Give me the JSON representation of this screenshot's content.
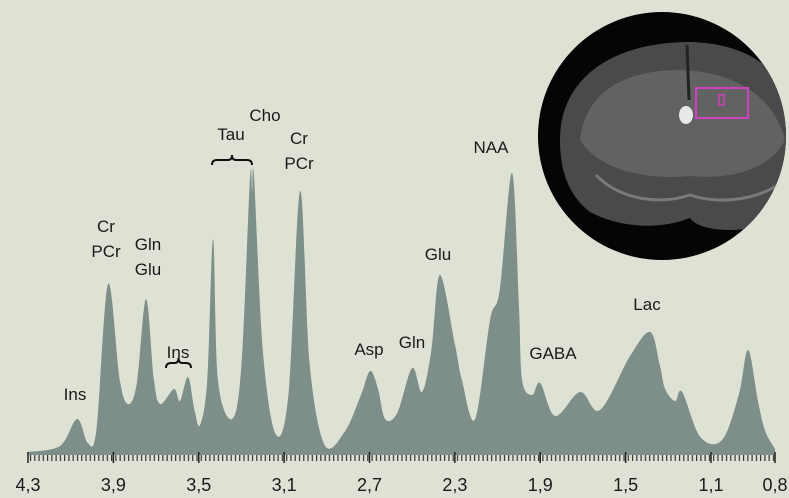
{
  "chart_data": {
    "type": "area",
    "xlim": [
      4.3,
      0.8
    ],
    "ylim": [
      0,
      100
    ],
    "xticks": [
      {
        "value": 4.3,
        "label": "4,3"
      },
      {
        "value": 3.9,
        "label": "3,9"
      },
      {
        "value": 3.5,
        "label": "3,5"
      },
      {
        "value": 3.1,
        "label": "3,1"
      },
      {
        "value": 2.7,
        "label": "2,7"
      },
      {
        "value": 2.3,
        "label": "2,3"
      },
      {
        "value": 1.9,
        "label": "1,9"
      },
      {
        "value": 1.5,
        "label": "1,5"
      },
      {
        "value": 1.1,
        "label": "1,1"
      },
      {
        "value": 0.8,
        "label": "0,8"
      }
    ],
    "series": [
      {
        "color": "#7e8e89",
        "x": [
          4.3,
          4.15,
          4.07,
          4.02,
          3.98,
          3.925,
          3.87,
          3.83,
          3.79,
          3.747,
          3.71,
          3.68,
          3.616,
          3.588,
          3.55,
          3.52,
          3.494,
          3.46,
          3.433,
          3.41,
          3.344,
          3.3,
          3.26,
          3.25,
          3.241,
          3.2,
          3.14,
          3.08,
          3.025,
          2.98,
          2.908,
          2.814,
          2.74,
          2.697,
          2.66,
          2.627,
          2.57,
          2.5,
          2.454,
          2.41,
          2.37,
          2.3,
          2.267,
          2.205,
          2.135,
          2.09,
          2.032,
          2.0,
          1.985,
          1.938,
          1.9,
          1.83,
          1.713,
          1.62,
          1.479,
          1.385,
          1.34,
          1.315,
          1.268,
          1.235,
          1.15,
          1.048,
          0.97,
          0.926,
          0.88,
          0.846,
          0.8
        ],
        "values": [
          1,
          3,
          12,
          4,
          8,
          57,
          25,
          17,
          24,
          52,
          25,
          17,
          22,
          18,
          26,
          15,
          10,
          25,
          72,
          25,
          12,
          30,
          92,
          88,
          93,
          35,
          7,
          20,
          88,
          30,
          3,
          8,
          20,
          28,
          22,
          12,
          14,
          29,
          21,
          35,
          60,
          37,
          25,
          12,
          45,
          55,
          94,
          50,
          25,
          20,
          24,
          13,
          21,
          15,
          33,
          41,
          30,
          22,
          18,
          21,
          6,
          5,
          20,
          35,
          18,
          8,
          2
        ]
      }
    ],
    "annotations": [
      {
        "lines": [
          "Ins"
        ]
      },
      {
        "lines": [
          "Cr",
          "PCr"
        ]
      },
      {
        "lines": [
          "Gln",
          "Glu"
        ]
      },
      {
        "lines": [
          "Ins"
        ]
      },
      {
        "lines": [
          "Tau"
        ]
      },
      {
        "lines": [
          "Cho"
        ]
      },
      {
        "lines": [
          "Cr",
          "PCr"
        ]
      },
      {
        "lines": [
          "NAA"
        ]
      },
      {
        "lines": [
          "Glu"
        ]
      },
      {
        "lines": [
          "Asp"
        ]
      },
      {
        "lines": [
          "Gln"
        ]
      },
      {
        "lines": [
          "GABA"
        ]
      },
      {
        "lines": [
          "Lac"
        ]
      }
    ]
  }
}
